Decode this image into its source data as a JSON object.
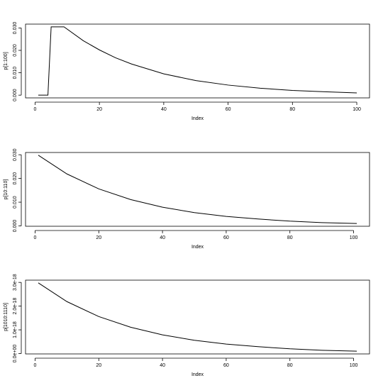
{
  "chart_data": [
    {
      "type": "line",
      "x_label": "Index",
      "y_label": "p[1:100]",
      "x": [
        1,
        4,
        5,
        9,
        15,
        20,
        25,
        30,
        40,
        50,
        60,
        70,
        80,
        90,
        100
      ],
      "series": [
        {
          "color": "#000000",
          "values": [
            0,
            0,
            0.0305,
            0.0305,
            0.0243,
            0.0202,
            0.0167,
            0.0139,
            0.0095,
            0.0065,
            0.0045,
            0.0031,
            0.0021,
            0.0015,
            0.001
          ]
        }
      ],
      "xlim": [
        -2.96,
        103.96
      ],
      "xticks": [
        0,
        20,
        40,
        60,
        80,
        100
      ],
      "ylim": [
        -0.00122,
        0.03172
      ],
      "yticks": [
        {
          "value": 0,
          "label": "0.000"
        },
        {
          "value": 0.01,
          "label": "0.010"
        },
        {
          "value": 0.02,
          "label": "0.020"
        },
        {
          "value": 0.03,
          "label": "0.030"
        }
      ]
    },
    {
      "type": "line",
      "x_label": "Index",
      "y_label": "p[10:110]",
      "x": [
        1,
        10,
        20,
        30,
        40,
        50,
        60,
        70,
        80,
        90,
        101
      ],
      "series": [
        {
          "color": "#000000",
          "values": [
            0.0298,
            0.0219,
            0.0156,
            0.0111,
            0.0079,
            0.0056,
            0.004,
            0.0029,
            0.002,
            0.0014,
            0.001
          ]
        }
      ],
      "xlim": [
        -3,
        105
      ],
      "xticks": [
        0,
        20,
        40,
        60,
        80,
        100
      ],
      "ylim": [
        -0.00015,
        0.03095
      ],
      "yticks": [
        {
          "value": 0,
          "label": "0.000"
        },
        {
          "value": 0.01,
          "label": "0.010"
        },
        {
          "value": 0.02,
          "label": "0.020"
        },
        {
          "value": 0.03,
          "label": "0.030"
        }
      ]
    },
    {
      "type": "line",
      "x_label": "Index",
      "y_label": "p[1010:1110]",
      "x": [
        1,
        10,
        20,
        30,
        40,
        50,
        60,
        70,
        80,
        90,
        101
      ],
      "series": [
        {
          "color": "#000000",
          "values": [
            2.98e-18,
            2.19e-18,
            1.56e-18,
            1.11e-18,
            7.9e-19,
            5.6e-19,
            4e-19,
            2.9e-19,
            2e-19,
            1.4e-19,
            1e-19
          ]
        }
      ],
      "xlim": [
        -3,
        105
      ],
      "xticks": [
        0,
        20,
        40,
        60,
        80,
        100
      ],
      "ylim": [
        -1.5e-20,
        3.095e-18
      ],
      "yticks": [
        {
          "value": 0,
          "label": "0.0e+00"
        },
        {
          "value": 1e-18,
          "label": "1.0e-18"
        },
        {
          "value": 2e-18,
          "label": "2.0e-18"
        },
        {
          "value": 3e-18,
          "label": "3.0e-18"
        }
      ]
    }
  ]
}
